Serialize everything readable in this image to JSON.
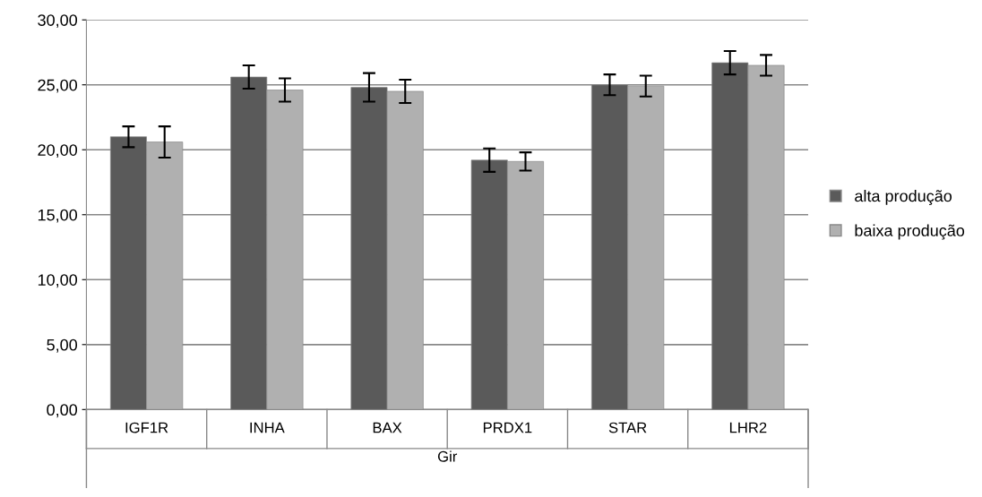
{
  "chart_data": {
    "type": "bar",
    "xlabel": "Gir",
    "categories": [
      "IGF1R",
      "INHA",
      "BAX",
      "PRDX1",
      "STAR",
      "LHR2"
    ],
    "series": [
      {
        "name": "alta produção",
        "color": "#5a5a5a",
        "values": [
          21.0,
          25.6,
          24.8,
          19.2,
          25.0,
          26.7
        ],
        "errors": [
          0.8,
          0.9,
          1.1,
          0.9,
          0.8,
          0.9
        ]
      },
      {
        "name": "baixa produção",
        "color": "#b0b0b0",
        "values": [
          20.6,
          24.6,
          24.5,
          19.1,
          24.9,
          26.5
        ],
        "errors": [
          1.2,
          0.9,
          0.9,
          0.7,
          0.8,
          0.8
        ]
      }
    ],
    "ylim": [
      0,
      30
    ],
    "yticks": [
      {
        "value": 0,
        "label": "0,00"
      },
      {
        "value": 5,
        "label": "5,00"
      },
      {
        "value": 10,
        "label": "10,00"
      },
      {
        "value": 15,
        "label": "15,00"
      },
      {
        "value": 20,
        "label": "20,00"
      },
      {
        "value": 25,
        "label": "25,00"
      },
      {
        "value": 30,
        "label": "30,00"
      }
    ],
    "grid": "y",
    "legend": "right"
  }
}
